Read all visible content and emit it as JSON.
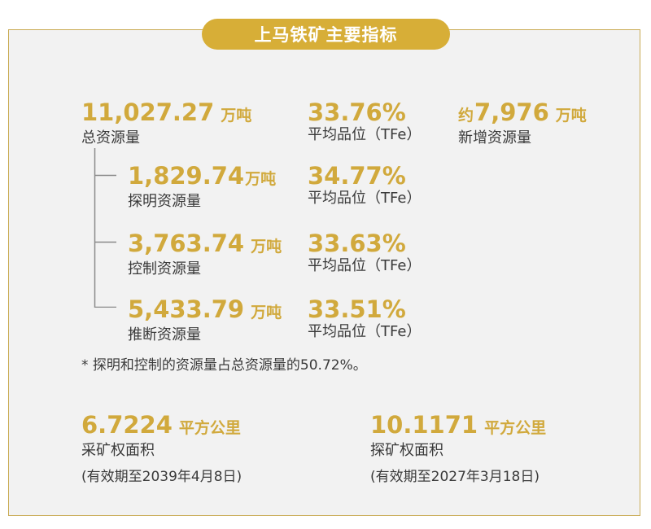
{
  "title": "上马铁矿主要指标",
  "colors": {
    "accent": "#d1a93c",
    "title_bg": "#d7ae37",
    "panel_bg": "#f2f2f2",
    "text": "#3a3a3a"
  },
  "total": {
    "value": "11,027.27",
    "unit": "万吨",
    "label": "总资源量"
  },
  "total_grade": {
    "value": "33.76%",
    "label": "平均品位（TFe）"
  },
  "new_resource": {
    "prefix": "约",
    "value": "7,976",
    "unit": "万吨",
    "label": "新增资源量"
  },
  "breakdown": [
    {
      "value": "1,829.74",
      "unit": "万吨",
      "label": "探明资源量",
      "grade": "34.77%",
      "grade_label": "平均品位（TFe）"
    },
    {
      "value": "3,763.74",
      "unit": "万吨",
      "label": "控制资源量",
      "grade": "33.63%",
      "grade_label": "平均品位（TFe）"
    },
    {
      "value": "5,433.79",
      "unit": "万吨",
      "label": "推断资源量",
      "grade": "33.51%",
      "grade_label": "平均品位（TFe）"
    }
  ],
  "note": "* 探明和控制的资源量占总资源量的50.72%。",
  "mining_area": {
    "value": "6.7224",
    "unit": "平方公里",
    "label": "采矿权面积",
    "validity": "(有效期至2039年4月8日)"
  },
  "exploration_area": {
    "value": "10.1171",
    "unit": "平方公里",
    "label": "探矿权面积",
    "validity": "(有效期至2027年3月18日)"
  }
}
